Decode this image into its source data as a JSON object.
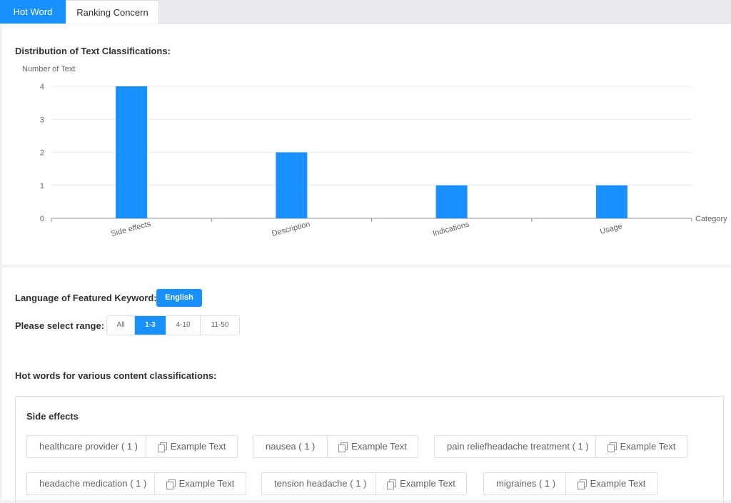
{
  "tabs": [
    {
      "label": "Hot Word",
      "active": true
    },
    {
      "label": "Ranking Concern",
      "active": false
    }
  ],
  "chart_section": {
    "title": "Distribution of Text Classifications:"
  },
  "chart_data": {
    "type": "bar",
    "categories": [
      "Side effects",
      "Description",
      "Indications",
      "Usage"
    ],
    "values": [
      4,
      2,
      1,
      1
    ],
    "ylabel": "Number of Text",
    "xlabel": "Category",
    "ylim": [
      0,
      4
    ],
    "yticks": [
      "0",
      "1",
      "2",
      "3",
      "4"
    ],
    "bar_color": "#1890ff",
    "grid": true
  },
  "language": {
    "label": "Language of Featured Keyword:",
    "value": "English"
  },
  "range": {
    "label": "Please select range:",
    "options": [
      "All",
      "1-3",
      "4-10",
      "11-50"
    ],
    "selected": "1-3"
  },
  "hot_words": {
    "heading": "Hot words for various content classifications:",
    "groups": [
      {
        "title": "Side effects",
        "words": [
          {
            "word": "healthcare provider ( 1 )",
            "action": "Example Text"
          },
          {
            "word": "nausea ( 1 )",
            "action": "Example Text"
          },
          {
            "word": "pain reliefheadache treatment ( 1 )",
            "action": "Example Text"
          },
          {
            "word": "headache medication ( 1 )",
            "action": "Example Text"
          },
          {
            "word": "tension headache ( 1 )",
            "action": "Example Text"
          },
          {
            "word": "migraines ( 1 )",
            "action": "Example Text"
          }
        ]
      }
    ]
  },
  "colors": {
    "accent": "#1890ff",
    "page_bg": "#f0f2f5"
  },
  "icons": {
    "example_text": "copy-icon"
  }
}
